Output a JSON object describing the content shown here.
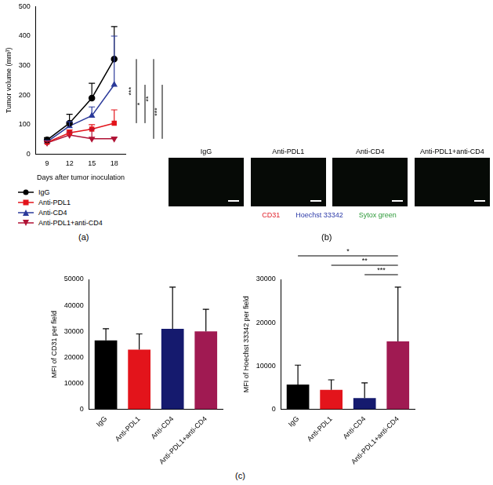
{
  "chart_data": [
    {
      "type": "line",
      "categories": [
        "9",
        "12",
        "15",
        "18"
      ],
      "x_label": "Days after tumor inoculation",
      "y_label": "Tumor volume (mm³)",
      "ylim": [
        0,
        500
      ],
      "yticks": [
        0,
        100,
        200,
        300,
        400,
        500
      ],
      "grid": false,
      "legend": "bottom",
      "series": [
        {
          "name": "IgG",
          "color": "#000000",
          "marker": "circle",
          "values": [
            48,
            105,
            190,
            322
          ],
          "errors": [
            8,
            30,
            50,
            110
          ]
        },
        {
          "name": "Anti-PDL1",
          "color": "#e3141b",
          "marker": "square",
          "values": [
            40,
            72,
            85,
            105
          ],
          "errors": [
            5,
            10,
            15,
            45
          ]
        },
        {
          "name": "Anti-CD4",
          "color": "#2b3a9a",
          "marker": "triangle",
          "values": [
            42,
            95,
            130,
            235
          ],
          "errors": [
            5,
            15,
            30,
            165
          ]
        },
        {
          "name": "Anti-PDL1+anti-CD4",
          "color": "#b01235",
          "marker": "triangle-down",
          "values": [
            38,
            65,
            52,
            52
          ],
          "errors": [
            5,
            10,
            33,
            5
          ]
        }
      ],
      "significance": [
        {
          "from": "IgG",
          "to": "Anti-PDL1",
          "label": "***"
        },
        {
          "from": "Anti-CD4",
          "to": "Anti-PDL1",
          "label": "*"
        },
        {
          "from": "IgG",
          "to": "Anti-PDL1+anti-CD4",
          "label": "**"
        },
        {
          "from": "Anti-CD4",
          "to": "Anti-PDL1+anti-CD4",
          "label": "***"
        }
      ]
    },
    {
      "type": "bar",
      "categories": [
        "IgG",
        "Anti-PDL1",
        "Anti-CD4",
        "Anti-PDL1+anti-CD4"
      ],
      "values": [
        26500,
        23000,
        31000,
        30000
      ],
      "errors": [
        4500,
        6000,
        16000,
        8500
      ],
      "colors": [
        "#000000",
        "#e3141b",
        "#151a6e",
        "#a01a52"
      ],
      "y_label": "MFI of CD31 per field",
      "ylim": [
        0,
        50000
      ],
      "yticks": [
        0,
        10000,
        20000,
        30000,
        40000,
        50000
      ],
      "grid": false
    },
    {
      "type": "bar",
      "categories": [
        "IgG",
        "Anti-PDL1",
        "Anti-CD4",
        "Anti-PDL1+anti-CD4"
      ],
      "values": [
        5700,
        4500,
        2600,
        15700
      ],
      "errors": [
        4500,
        2300,
        3500,
        12500
      ],
      "colors": [
        "#000000",
        "#e3141b",
        "#151a6e",
        "#a01a52"
      ],
      "y_label": "MFI of Hoechst 33342 per field",
      "ylim": [
        0,
        30000
      ],
      "yticks": [
        0,
        10000,
        20000,
        30000
      ],
      "grid": false,
      "significance": [
        {
          "from": "IgG",
          "to": "Anti-PDL1+anti-CD4",
          "label": "*"
        },
        {
          "from": "Anti-PDL1",
          "to": "Anti-PDL1+anti-CD4",
          "label": "**"
        },
        {
          "from": "Anti-CD4",
          "to": "Anti-PDL1+anti-CD4",
          "label": "***"
        }
      ]
    }
  ],
  "panel_labels": [
    "(a)",
    "(b)",
    "(c)"
  ],
  "image_panel": {
    "titles": [
      "IgG",
      "Anti-PDL1",
      "Anti-CD4",
      "Anti-PDL1+anti-CD4"
    ],
    "channels": [
      {
        "name": "CD31",
        "color": "#e0202a"
      },
      {
        "name": "Hoechst 33342",
        "color": "#2c3aa8"
      },
      {
        "name": "Sytox green",
        "color": "#2e9a3a"
      }
    ]
  }
}
